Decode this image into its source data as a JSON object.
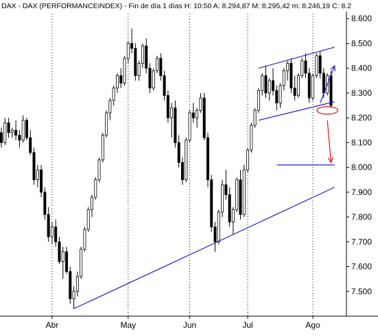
{
  "chart_data": {
    "type": "candlestick",
    "title": "DAX - DAX (PERFORMANCEINDEX) - Fin de día 1 días H: 10:50 A: 8.294,87 M: 8.295,42 m: 8.246,19 C: 8.2",
    "xlabel": "",
    "ylabel": "",
    "ylim": [
      7400,
      8620
    ],
    "y_ticks": [
      {
        "value": 7500,
        "label": "7.500"
      },
      {
        "value": 7600,
        "label": "7.600"
      },
      {
        "value": 7700,
        "label": "7.700"
      },
      {
        "value": 7800,
        "label": "7.800"
      },
      {
        "value": 7900,
        "label": "7.900"
      },
      {
        "value": 8000,
        "label": "8.000"
      },
      {
        "value": 8100,
        "label": "8.100"
      },
      {
        "value": 8200,
        "label": "8.200"
      },
      {
        "value": 8300,
        "label": "8.300"
      },
      {
        "value": 8400,
        "label": "8.400"
      },
      {
        "value": 8500,
        "label": "8.500"
      },
      {
        "value": 8600,
        "label": "8.600"
      }
    ],
    "x_ticks": [
      {
        "index": 14,
        "label": "Abr"
      },
      {
        "index": 35,
        "label": "May"
      },
      {
        "index": 52,
        "label": "Jun"
      },
      {
        "index": 68,
        "label": "Jul"
      },
      {
        "index": 86,
        "label": "Ago"
      }
    ],
    "grid": "vertical-dotted-at-months",
    "candles": [
      [
        8140,
        8160,
        8080,
        8100
      ],
      [
        8100,
        8200,
        8090,
        8180
      ],
      [
        8180,
        8200,
        8120,
        8140
      ],
      [
        8140,
        8160,
        8120,
        8150
      ],
      [
        8150,
        8190,
        8110,
        8130
      ],
      [
        8130,
        8150,
        8080,
        8110
      ],
      [
        8110,
        8210,
        8100,
        8190
      ],
      [
        8190,
        8200,
        8110,
        8120
      ],
      [
        8120,
        8150,
        8050,
        8060
      ],
      [
        8060,
        8080,
        7930,
        7950
      ],
      [
        7950,
        8010,
        7920,
        7990
      ],
      [
        7990,
        8010,
        7880,
        7900
      ],
      [
        7900,
        7920,
        7790,
        7810
      ],
      [
        7810,
        7840,
        7700,
        7720
      ],
      [
        7720,
        7780,
        7690,
        7760
      ],
      [
        7760,
        7790,
        7680,
        7700
      ],
      [
        7700,
        7720,
        7610,
        7620
      ],
      [
        7620,
        7680,
        7550,
        7660
      ],
      [
        7660,
        7680,
        7570,
        7580
      ],
      [
        7580,
        7600,
        7450,
        7470
      ],
      [
        7470,
        7520,
        7430,
        7500
      ],
      [
        7500,
        7580,
        7480,
        7560
      ],
      [
        7560,
        7680,
        7550,
        7670
      ],
      [
        7670,
        7760,
        7660,
        7750
      ],
      [
        7750,
        7840,
        7740,
        7830
      ],
      [
        7830,
        7890,
        7800,
        7880
      ],
      [
        7880,
        7960,
        7870,
        7950
      ],
      [
        7950,
        8040,
        7940,
        8030
      ],
      [
        8030,
        8140,
        8020,
        8130
      ],
      [
        8130,
        8230,
        8120,
        8220
      ],
      [
        8220,
        8280,
        8190,
        8270
      ],
      [
        8270,
        8330,
        8250,
        8320
      ],
      [
        8320,
        8380,
        8300,
        8370
      ],
      [
        8370,
        8400,
        8320,
        8340
      ],
      [
        8340,
        8450,
        8330,
        8440
      ],
      [
        8440,
        8510,
        8420,
        8500
      ],
      [
        8500,
        8560,
        8460,
        8480
      ],
      [
        8480,
        8500,
        8350,
        8370
      ],
      [
        8370,
        8430,
        8350,
        8420
      ],
      [
        8420,
        8500,
        8400,
        8490
      ],
      [
        8490,
        8520,
        8380,
        8400
      ],
      [
        8400,
        8420,
        8300,
        8320
      ],
      [
        8320,
        8400,
        8310,
        8390
      ],
      [
        8390,
        8450,
        8380,
        8440
      ],
      [
        8440,
        8460,
        8350,
        8370
      ],
      [
        8370,
        8390,
        8270,
        8290
      ],
      [
        8290,
        8310,
        8180,
        8200
      ],
      [
        8200,
        8260,
        8120,
        8240
      ],
      [
        8240,
        8270,
        8080,
        8100
      ],
      [
        8100,
        8130,
        8000,
        8020
      ],
      [
        8020,
        8040,
        7930,
        7950
      ],
      [
        7950,
        8120,
        7940,
        8110
      ],
      [
        8110,
        8230,
        8100,
        8220
      ],
      [
        8220,
        8260,
        8180,
        8200
      ],
      [
        8200,
        8240,
        8160,
        8230
      ],
      [
        8230,
        8300,
        8220,
        8280
      ],
      [
        8280,
        8300,
        8110,
        8120
      ],
      [
        8120,
        8140,
        7920,
        7950
      ],
      [
        7950,
        7970,
        7740,
        7760
      ],
      [
        7760,
        7780,
        7660,
        7700
      ],
      [
        7700,
        7830,
        7690,
        7820
      ],
      [
        7820,
        7950,
        7800,
        7930
      ],
      [
        7930,
        7990,
        7870,
        7890
      ],
      [
        7890,
        7920,
        7760,
        7780
      ],
      [
        7780,
        7840,
        7730,
        7830
      ],
      [
        7830,
        7960,
        7820,
        7950
      ],
      [
        7950,
        7990,
        7790,
        7810
      ],
      [
        7810,
        8010,
        7800,
        7990
      ],
      [
        7990,
        8080,
        7980,
        8070
      ],
      [
        8070,
        8180,
        8060,
        8170
      ],
      [
        8170,
        8240,
        8160,
        8230
      ],
      [
        8230,
        8320,
        8220,
        8310
      ],
      [
        8310,
        8380,
        8290,
        8370
      ],
      [
        8370,
        8410,
        8280,
        8300
      ],
      [
        8300,
        8360,
        8270,
        8350
      ],
      [
        8350,
        8400,
        8290,
        8310
      ],
      [
        8310,
        8330,
        8230,
        8260
      ],
      [
        8260,
        8340,
        8240,
        8330
      ],
      [
        8330,
        8400,
        8310,
        8390
      ],
      [
        8390,
        8430,
        8350,
        8420
      ],
      [
        8420,
        8440,
        8300,
        8320
      ],
      [
        8320,
        8370,
        8270,
        8290
      ],
      [
        8290,
        8380,
        8280,
        8370
      ],
      [
        8370,
        8440,
        8360,
        8430
      ],
      [
        8430,
        8460,
        8360,
        8380
      ],
      [
        8380,
        8400,
        8260,
        8280
      ],
      [
        8280,
        8380,
        8270,
        8370
      ],
      [
        8370,
        8460,
        8360,
        8450
      ],
      [
        8450,
        8470,
        8360,
        8380
      ],
      [
        8380,
        8400,
        8280,
        8300
      ],
      [
        8300,
        8380,
        8290,
        8370
      ],
      [
        8370,
        8390,
        8240,
        8250
      ]
    ],
    "trendlines": [
      {
        "from": [
          20,
          7430
        ],
        "to": [
          92,
          7920
        ],
        "color": "#1f1fc8"
      },
      {
        "from": [
          71,
          8400
        ],
        "to": [
          92,
          8485
        ],
        "color": "#1f1fc8"
      },
      {
        "from": [
          71,
          8190
        ],
        "to": [
          92,
          8265
        ],
        "color": "#1f1fc8"
      },
      {
        "from": [
          76,
          8010
        ],
        "to": [
          92,
          8010
        ],
        "color": "#1f1fc8"
      }
    ],
    "annotations": {
      "ellipse": {
        "center": [
          90,
          8230
        ],
        "rx_index": 1.8,
        "ry_value": 40,
        "color": "#dd1111"
      },
      "arrow_up": {
        "from": [
          88,
          8260
        ],
        "to": [
          92,
          8410
        ],
        "color": "#1f1fc8"
      },
      "arrow_down": {
        "from": [
          90,
          8190
        ],
        "to": [
          91,
          8020
        ],
        "color": "#dd1111"
      }
    },
    "colors": {
      "up": "#ffffff",
      "down": "#000000",
      "wick": "#000000",
      "grid": "#000000",
      "axis": "#000000"
    }
  }
}
